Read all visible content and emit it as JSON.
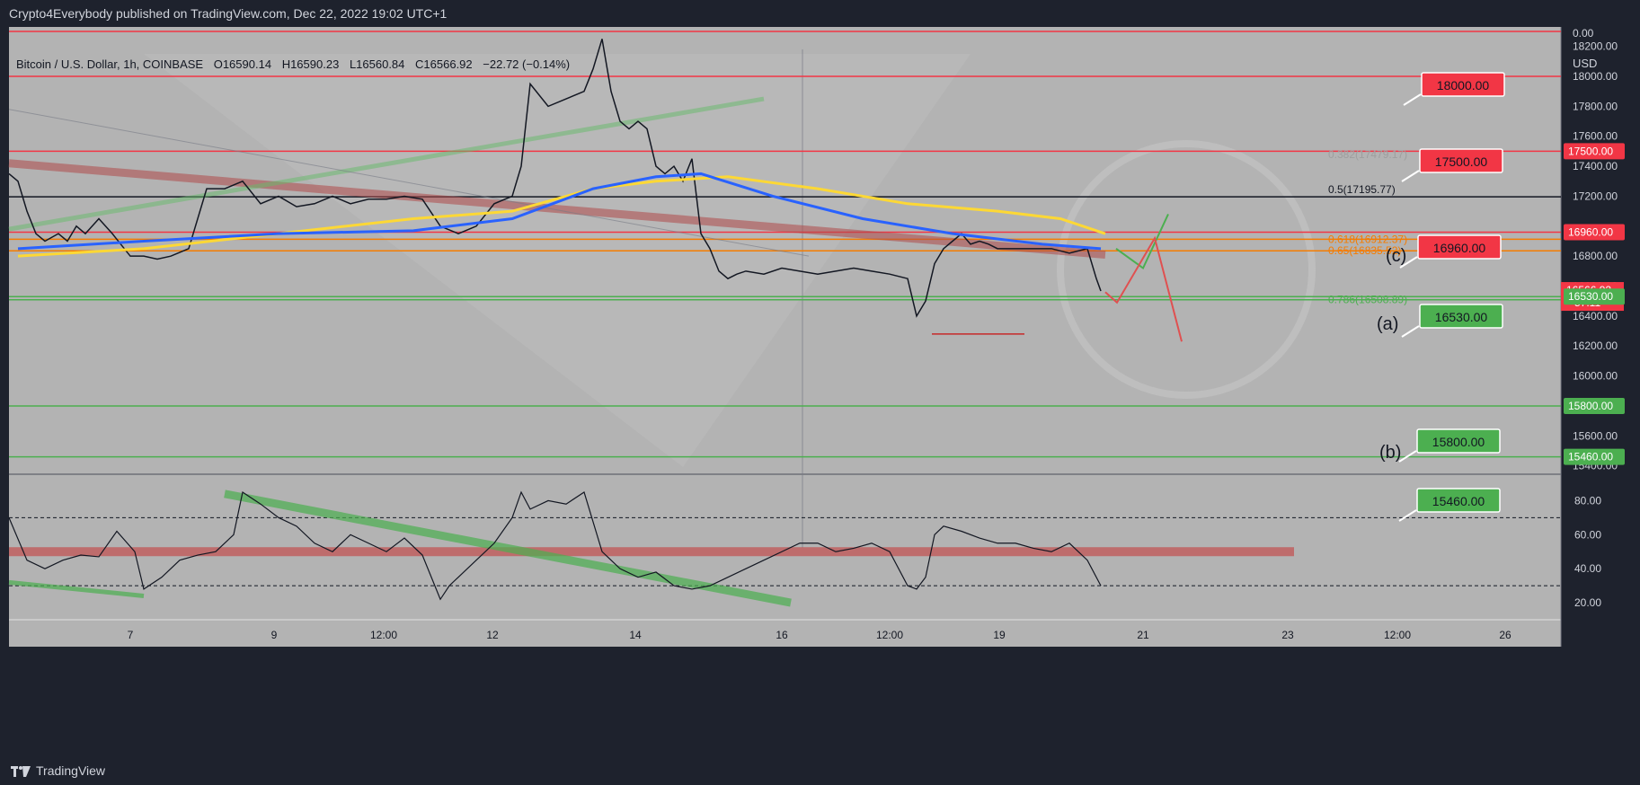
{
  "header": {
    "publisher_text": "Crypto4Everybody published on TradingView.com, Dec 22, 2022 19:02 UTC+1"
  },
  "footer": {
    "brand": "TradingView"
  },
  "legend": {
    "symbol": "Bitcoin / U.S. Dollar, 1h, COINBASE",
    "open_label": "O",
    "open": "16590.14",
    "high_label": "H",
    "high": "16590.23",
    "low_label": "L",
    "low": "16560.84",
    "close_label": "C",
    "close": "16566.92",
    "change": "−22.72 (−0.14%)"
  },
  "colors": {
    "background": "#b3b3b3",
    "frame": "#1e222d",
    "up": "#22ab94",
    "down": "#131722",
    "resistance": "#f23645",
    "support": "#4caf50",
    "ema_yellow": "#fdd835",
    "ma_blue": "#2962ff",
    "fib_orange": "#f57c00"
  },
  "price_axis": {
    "currency": "USD",
    "ticks": [
      "0.00",
      "18200.00",
      "18000.00",
      "17800.00",
      "17600.00",
      "17400.00",
      "17200.00",
      "16800.00",
      "16600.00",
      "16400.00",
      "16200.00",
      "16000.00",
      "15800.00",
      "15600.00",
      "15400.00"
    ],
    "current_price": "16566.92",
    "countdown": "57:11",
    "level_tags": [
      {
        "value": "17500.00",
        "color": "#f23645"
      },
      {
        "value": "16960.00",
        "color": "#f23645"
      },
      {
        "value": "16530.00",
        "color": "#4caf50"
      },
      {
        "value": "15800.00",
        "color": "#4caf50"
      },
      {
        "value": "15460.00",
        "color": "#4caf50"
      }
    ]
  },
  "time_axis": {
    "labels": [
      "7",
      "9",
      "12:00",
      "12",
      "14",
      "16",
      "12:00",
      "19",
      "21",
      "23",
      "12:00",
      "26"
    ]
  },
  "rsi_axis": {
    "ticks": [
      "80.00",
      "60.00",
      "40.00",
      "20.00"
    ]
  },
  "annotations": {
    "level_callouts": [
      {
        "text": "18000.00",
        "kind": "resistance"
      },
      {
        "text": "17500.00",
        "kind": "resistance"
      },
      {
        "text": "16960.00",
        "kind": "resistance"
      },
      {
        "text": "16530.00",
        "kind": "support"
      },
      {
        "text": "15800.00",
        "kind": "support"
      },
      {
        "text": "15460.00",
        "kind": "support"
      }
    ],
    "wave_labels": [
      "(c)",
      "(a)",
      "(b)"
    ],
    "fib_labels": [
      {
        "text": "0.382(17479.17)",
        "color": "#9e9e9e"
      },
      {
        "text": "0.5(17195.77)",
        "color": "#131722"
      },
      {
        "text": "0.618(16912.37)",
        "color": "#f57c00"
      },
      {
        "text": "0.65(16835.52)",
        "color": "#f57c00"
      },
      {
        "text": "0.786(16508.89)",
        "color": "#4caf50"
      }
    ]
  },
  "chart_data": [
    {
      "type": "line",
      "ylim": [
        15350,
        18330
      ],
      "horizontal_levels": [
        {
          "price": 18300,
          "color": "#f23645"
        },
        {
          "price": 18000,
          "color": "#f23645"
        },
        {
          "price": 17500,
          "color": "#f23645"
        },
        {
          "price": 17195.77,
          "color": "#131722"
        },
        {
          "price": 16960,
          "color": "#f23645"
        },
        {
          "price": 16912.37,
          "color": "#f57c00"
        },
        {
          "price": 16835.52,
          "color": "#f57c00"
        },
        {
          "price": 16530,
          "color": "#4caf50"
        },
        {
          "price": 16508.89,
          "color": "#4caf50"
        },
        {
          "price": 15800,
          "color": "#4caf50"
        },
        {
          "price": 15460,
          "color": "#4caf50"
        }
      ],
      "series": [
        {
          "color": "#131722",
          "x": [
            0,
            10,
            20,
            30,
            40,
            55,
            65,
            75,
            85,
            100,
            115,
            135,
            150,
            165,
            180,
            200,
            220,
            240,
            260,
            280,
            300,
            320,
            340,
            360,
            380,
            400,
            420,
            440,
            460,
            480,
            500,
            520,
            540,
            560,
            570,
            580,
            600,
            620,
            640,
            650,
            660,
            670,
            680,
            690,
            700,
            710,
            720,
            730,
            740,
            750,
            760,
            770,
            780,
            790,
            800,
            810,
            820,
            840,
            860,
            880,
            900,
            920,
            940,
            960,
            980,
            1000,
            1010,
            1020,
            1030,
            1040,
            1050,
            1060,
            1070,
            1080,
            1090,
            1100,
            1120,
            1140,
            1160,
            1180,
            1200,
            1210,
            1215
          ],
          "y": [
            17350,
            17300,
            17100,
            16950,
            16900,
            16950,
            16900,
            17000,
            16950,
            17050,
            16950,
            16800,
            16800,
            16780,
            16800,
            16850,
            17250,
            17250,
            17300,
            17150,
            17200,
            17130,
            17150,
            17200,
            17150,
            17180,
            17180,
            17200,
            17180,
            17000,
            16950,
            17000,
            17150,
            17200,
            17400,
            17950,
            17800,
            17850,
            17900,
            18050,
            18250,
            17900,
            17700,
            17650,
            17700,
            17650,
            17400,
            17350,
            17400,
            17300,
            17450,
            16950,
            16850,
            16700,
            16650,
            16680,
            16700,
            16680,
            16720,
            16700,
            16680,
            16700,
            16720,
            16700,
            16680,
            16650,
            16400,
            16500,
            16750,
            16850,
            16900,
            16950,
            16880,
            16900,
            16880,
            16850,
            16850,
            16850,
            16850,
            16820,
            16850,
            16650,
            16567
          ]
        },
        {
          "color": "#fdd835",
          "x": [
            10,
            150,
            300,
            450,
            560,
            650,
            720,
            800,
            900,
            1000,
            1100,
            1170,
            1220
          ],
          "y": [
            16800,
            16850,
            16950,
            17050,
            17100,
            17250,
            17300,
            17330,
            17250,
            17150,
            17100,
            17050,
            16950
          ]
        },
        {
          "color": "#2962ff",
          "x": [
            10,
            150,
            300,
            450,
            560,
            650,
            720,
            770,
            850,
            950,
            1050,
            1150,
            1215
          ],
          "y": [
            16850,
            16900,
            16950,
            16970,
            17050,
            17250,
            17330,
            17350,
            17200,
            17050,
            16950,
            16880,
            16850
          ]
        }
      ]
    },
    {
      "type": "line",
      "ylim": [
        10,
        95
      ],
      "horizontal_levels": [
        {
          "value": 70,
          "style": "dashed"
        },
        {
          "value": 50,
          "style": "band"
        },
        {
          "value": 30,
          "style": "dashed"
        }
      ],
      "series": [
        {
          "color": "#131722",
          "x": [
            0,
            20,
            40,
            60,
            80,
            100,
            120,
            140,
            150,
            170,
            190,
            210,
            230,
            250,
            260,
            280,
            300,
            320,
            340,
            360,
            380,
            400,
            420,
            440,
            460,
            470,
            480,
            490,
            500,
            520,
            540,
            560,
            570,
            580,
            600,
            620,
            640,
            660,
            670,
            680,
            700,
            720,
            740,
            760,
            780,
            800,
            820,
            840,
            860,
            880,
            900,
            920,
            940,
            960,
            980,
            1000,
            1010,
            1020,
            1030,
            1040,
            1060,
            1080,
            1100,
            1120,
            1140,
            1160,
            1180,
            1200,
            1215
          ],
          "y": [
            70,
            45,
            40,
            45,
            48,
            47,
            62,
            50,
            28,
            35,
            45,
            48,
            50,
            60,
            85,
            78,
            70,
            65,
            55,
            50,
            60,
            55,
            50,
            58,
            48,
            35,
            22,
            30,
            35,
            45,
            55,
            70,
            85,
            75,
            80,
            78,
            85,
            50,
            45,
            40,
            35,
            38,
            30,
            28,
            30,
            35,
            40,
            45,
            50,
            55,
            55,
            50,
            52,
            55,
            50,
            30,
            28,
            35,
            60,
            65,
            62,
            58,
            55,
            55,
            52,
            50,
            55,
            45,
            30
          ]
        }
      ]
    }
  ]
}
